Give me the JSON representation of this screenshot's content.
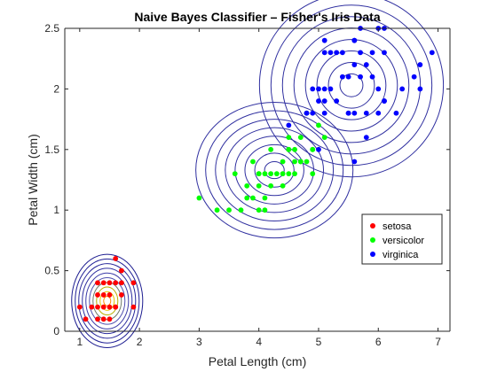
{
  "chart_data": {
    "type": "scatter",
    "title": "Naive Bayes Classifier -- Fisher's Iris Data",
    "title_display": "Naive Bayes Classifier – Fisher's Iris Data",
    "xlabel": "Petal Length (cm)",
    "ylabel": "Petal Width (cm)",
    "xlim": [
      0.75,
      7.2
    ],
    "ylim": [
      0,
      2.5
    ],
    "xticks": [
      "1",
      "2",
      "3",
      "4",
      "5",
      "6",
      "7"
    ],
    "yticks": [
      "0",
      "0.5",
      "1",
      "1.5",
      "2",
      "2.5"
    ],
    "grid": false,
    "legend_position": "right",
    "series": [
      {
        "name": "setosa",
        "color": "#ff0000",
        "points": [
          [
            1.4,
            0.2
          ],
          [
            1.3,
            0.2
          ],
          [
            1.5,
            0.2
          ],
          [
            1.7,
            0.4
          ],
          [
            1.4,
            0.3
          ],
          [
            1.5,
            0.1
          ],
          [
            1.6,
            0.2
          ],
          [
            1.1,
            0.1
          ],
          [
            1.2,
            0.2
          ],
          [
            1.3,
            0.4
          ],
          [
            1.7,
            0.3
          ],
          [
            1.5,
            0.4
          ],
          [
            1.0,
            0.2
          ],
          [
            1.7,
            0.5
          ],
          [
            1.9,
            0.2
          ],
          [
            1.6,
            0.4
          ],
          [
            1.6,
            0.6
          ],
          [
            1.4,
            0.1
          ],
          [
            1.5,
            0.3
          ],
          [
            1.9,
            0.4
          ],
          [
            1.3,
            0.3
          ],
          [
            1.6,
            0.2
          ],
          [
            1.4,
            0.4
          ],
          [
            1.3,
            0.1
          ]
        ]
      },
      {
        "name": "versicolor",
        "color": "#00ff00",
        "points": [
          [
            4.7,
            1.4
          ],
          [
            4.5,
            1.5
          ],
          [
            4.9,
            1.5
          ],
          [
            4.0,
            1.3
          ],
          [
            4.6,
            1.5
          ],
          [
            4.5,
            1.3
          ],
          [
            4.7,
            1.6
          ],
          [
            3.3,
            1.0
          ],
          [
            4.6,
            1.3
          ],
          [
            3.9,
            1.4
          ],
          [
            3.5,
            1.0
          ],
          [
            4.2,
            1.5
          ],
          [
            4.0,
            1.0
          ],
          [
            4.7,
            1.4
          ],
          [
            3.6,
            1.3
          ],
          [
            4.4,
            1.4
          ],
          [
            4.1,
            1.0
          ],
          [
            4.5,
            1.5
          ],
          [
            3.9,
            1.1
          ],
          [
            4.8,
            1.8
          ],
          [
            4.0,
            1.3
          ],
          [
            4.9,
            1.5
          ],
          [
            4.8,
            1.4
          ],
          [
            5.0,
            1.7
          ],
          [
            3.8,
            1.1
          ],
          [
            3.7,
            1.0
          ],
          [
            5.1,
            1.6
          ],
          [
            4.5,
            1.6
          ],
          [
            4.4,
            1.3
          ],
          [
            4.1,
            1.3
          ],
          [
            4.0,
            1.2
          ],
          [
            4.4,
            1.2
          ],
          [
            4.6,
            1.4
          ],
          [
            3.0,
            1.1
          ],
          [
            4.3,
            1.3
          ],
          [
            4.2,
            1.3
          ],
          [
            4.2,
            1.2
          ],
          [
            3.8,
            1.2
          ],
          [
            4.9,
            1.3
          ],
          [
            4.1,
            1.1
          ]
        ]
      },
      {
        "name": "virginica",
        "color": "#0000ff",
        "points": [
          [
            6.0,
            2.5
          ],
          [
            5.1,
            1.9
          ],
          [
            5.9,
            2.1
          ],
          [
            5.6,
            1.8
          ],
          [
            5.8,
            2.2
          ],
          [
            6.6,
            2.1
          ],
          [
            4.5,
            1.7
          ],
          [
            6.3,
            1.8
          ],
          [
            5.8,
            1.8
          ],
          [
            6.1,
            2.5
          ],
          [
            5.1,
            2.0
          ],
          [
            5.3,
            1.9
          ],
          [
            5.5,
            2.1
          ],
          [
            5.0,
            2.0
          ],
          [
            5.1,
            2.4
          ],
          [
            5.3,
            2.3
          ],
          [
            5.5,
            1.8
          ],
          [
            6.7,
            2.2
          ],
          [
            6.9,
            2.3
          ],
          [
            5.0,
            1.5
          ],
          [
            5.7,
            2.3
          ],
          [
            4.9,
            2.0
          ],
          [
            6.7,
            2.0
          ],
          [
            4.9,
            1.8
          ],
          [
            5.7,
            2.1
          ],
          [
            6.0,
            1.8
          ],
          [
            4.8,
            1.8
          ],
          [
            6.1,
            1.9
          ],
          [
            6.4,
            2.0
          ],
          [
            5.6,
            2.2
          ],
          [
            5.6,
            1.4
          ],
          [
            6.1,
            2.3
          ],
          [
            5.6,
            2.4
          ],
          [
            5.5,
            1.8
          ],
          [
            4.8,
            1.8
          ],
          [
            5.4,
            2.1
          ],
          [
            5.6,
            2.4
          ],
          [
            5.1,
            2.3
          ],
          [
            5.9,
            2.3
          ],
          [
            5.7,
            2.5
          ],
          [
            5.2,
            2.3
          ],
          [
            5.0,
            1.9
          ],
          [
            5.2,
            2.0
          ],
          [
            5.4,
            2.3
          ],
          [
            5.8,
            1.6
          ],
          [
            6.0,
            2.0
          ],
          [
            6.1,
            1.9
          ],
          [
            5.1,
            1.8
          ]
        ]
      }
    ],
    "contours": [
      {
        "series": "setosa",
        "mean": [
          1.46,
          0.25
        ],
        "sigma": [
          0.17,
          0.11
        ],
        "sigma_levels": [
          0.35,
          0.7,
          1.05,
          1.4,
          1.75,
          2.1,
          2.45,
          2.8,
          3.15,
          3.5
        ],
        "colors": [
          "#ff8c00",
          "#e6c300",
          "#b8b000",
          "#6f7a6a",
          "#5050b0",
          "#3c3ca8",
          "#2e2ea0",
          "#26269a",
          "#202096",
          "#1c1c90"
        ]
      },
      {
        "series": "versicolor",
        "mean": [
          4.26,
          1.33
        ],
        "sigma": [
          0.47,
          0.2
        ],
        "sigma_levels": [
          0.35,
          0.7,
          1.05,
          1.4,
          1.75,
          2.1,
          2.45,
          2.8
        ],
        "colors": [
          "#3030a0",
          "#3030a0",
          "#3030a0",
          "#3030a0",
          "#3030a0",
          "#3030a0",
          "#3030a0",
          "#3030a0"
        ]
      },
      {
        "series": "virginica",
        "mean": [
          5.55,
          2.03
        ],
        "sigma": [
          0.55,
          0.27
        ],
        "sigma_levels": [
          0.35,
          0.7,
          1.05,
          1.4,
          1.75,
          2.1,
          2.45,
          2.8
        ],
        "colors": [
          "#3030a0",
          "#3030a0",
          "#3030a0",
          "#3030a0",
          "#3030a0",
          "#3030a0",
          "#3030a0",
          "#3030a0"
        ]
      }
    ]
  }
}
